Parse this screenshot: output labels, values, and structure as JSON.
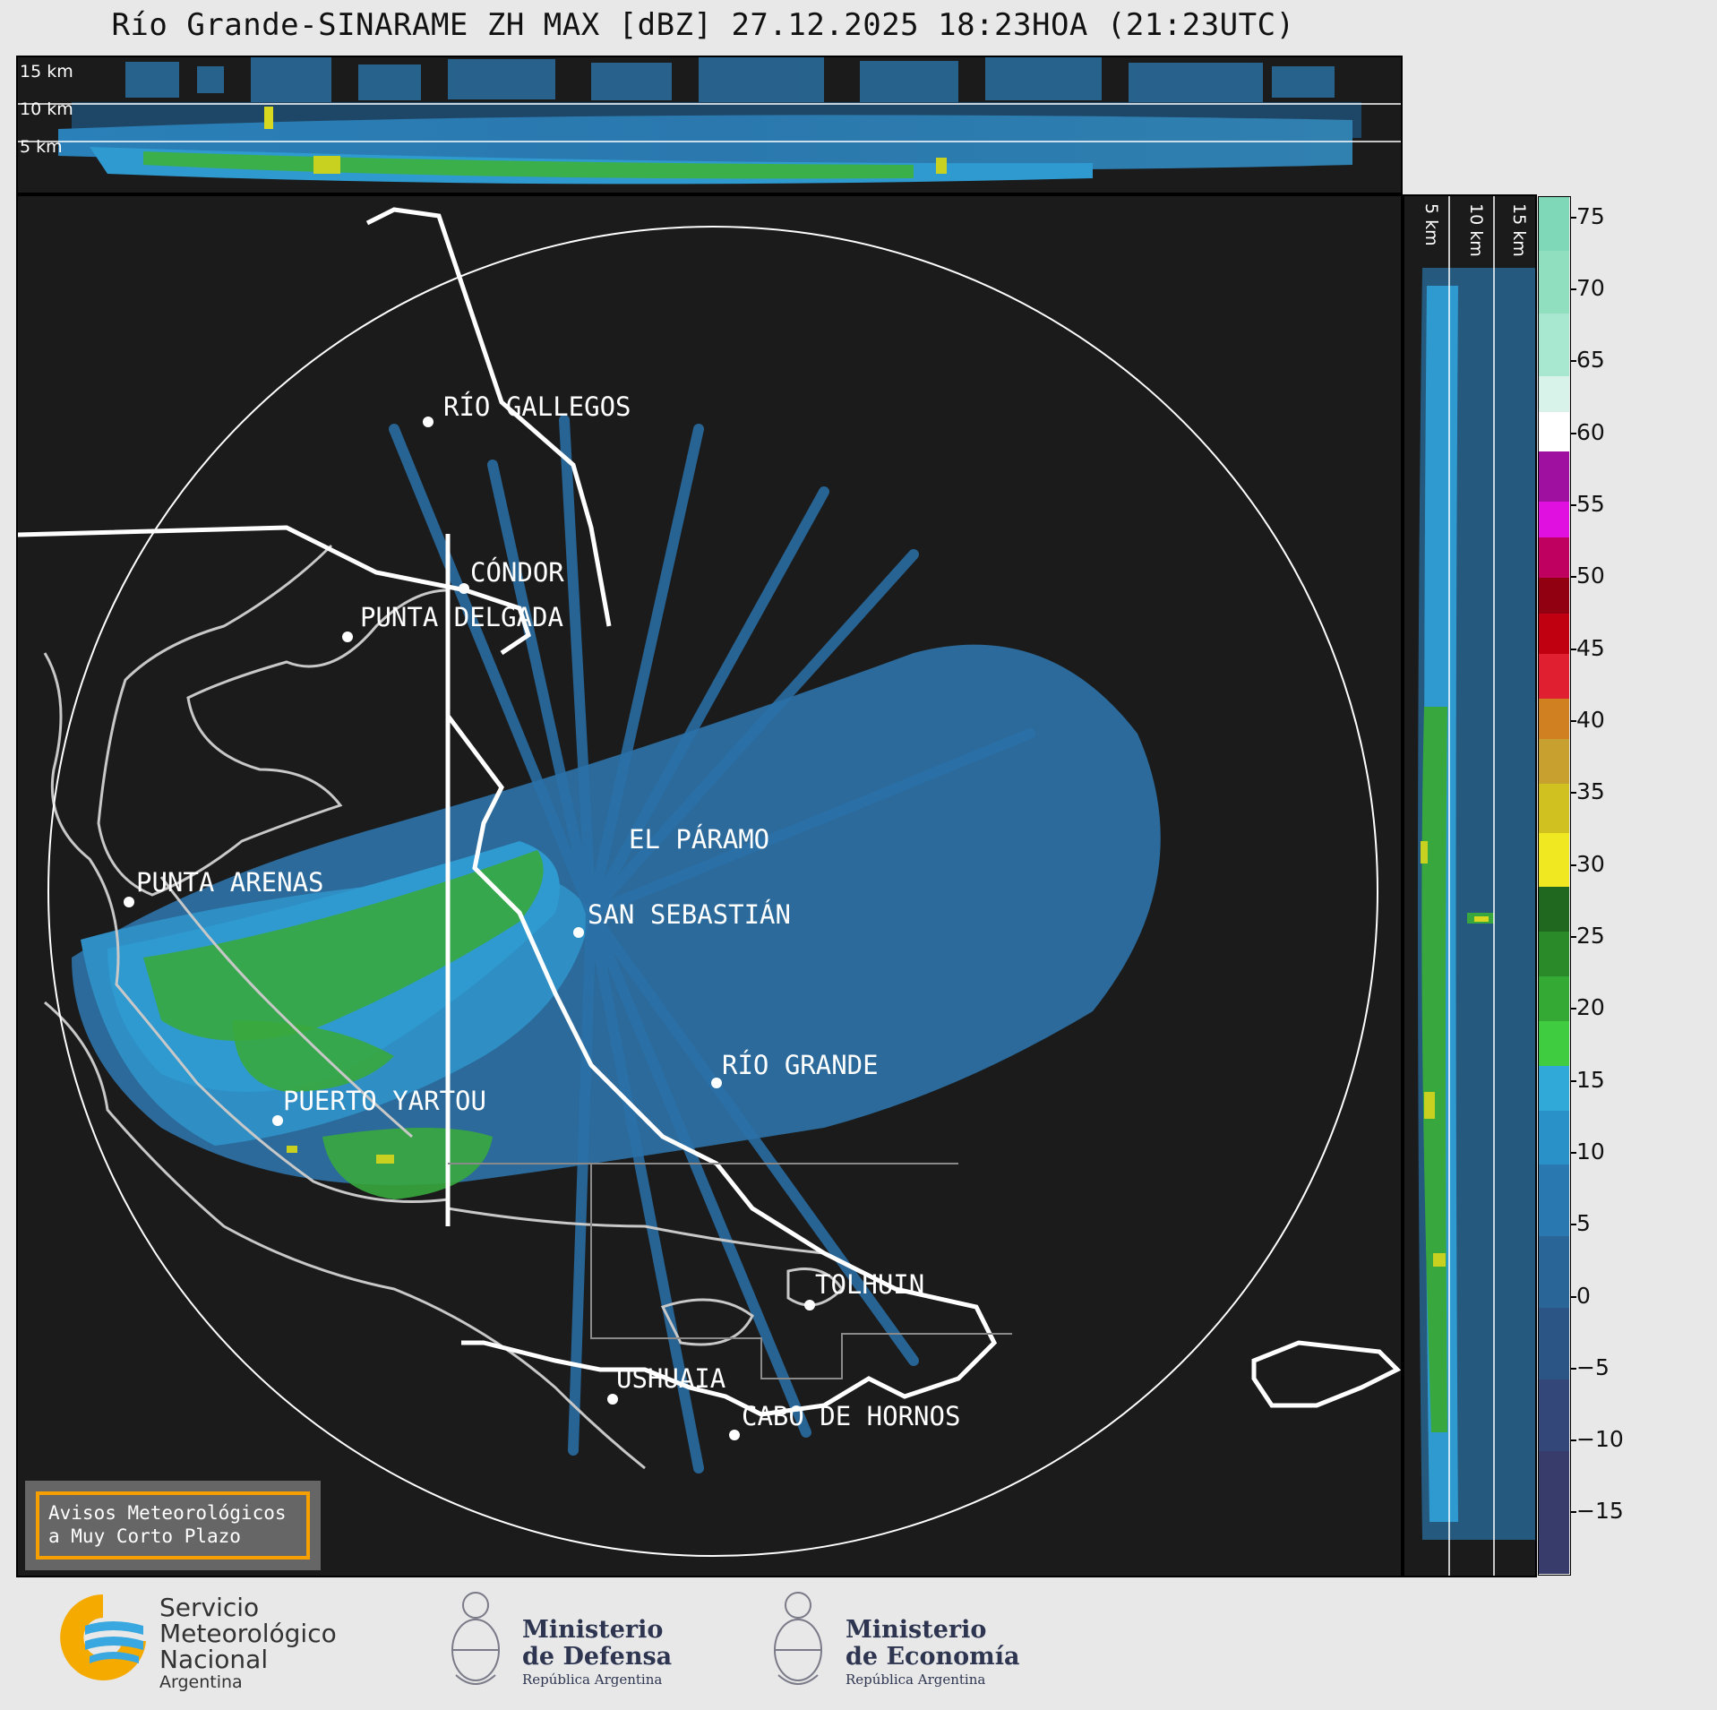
{
  "title": "Río Grande-SINARAME ZH MAX [dBZ] 27.12.2025 18:23HOA (21:23UTC)",
  "top_section": {
    "alt_labels": [
      "15 km",
      "10 km",
      "5 km"
    ]
  },
  "side_section": {
    "alt_labels": [
      "5 km",
      "10 km",
      "15 km"
    ]
  },
  "cities": [
    {
      "name": "RÍO GALLEGOS"
    },
    {
      "name": "CÓNDOR"
    },
    {
      "name": "PUNTA DELGADA"
    },
    {
      "name": "EL PÁRAMO"
    },
    {
      "name": "PUNTA ARENAS"
    },
    {
      "name": "SAN SEBASTIÁN"
    },
    {
      "name": "RÍO GRANDE"
    },
    {
      "name": "PUERTO YARTOU"
    },
    {
      "name": "TOLHUIN"
    },
    {
      "name": "USHUAIA"
    },
    {
      "name": "CABO DE HORNOS"
    }
  ],
  "colorbar": {
    "unit": "dBZ",
    "range": [
      -20,
      77
    ],
    "ticks": [
      "75",
      "70",
      "65",
      "60",
      "55",
      "50",
      "45",
      "40",
      "35",
      "30",
      "25",
      "20",
      "15",
      "10",
      "5",
      "0",
      "−5",
      "−10",
      "−15"
    ],
    "colors": {
      "below_0": "#3a4a7a",
      "0_to_18": "#2a7ab0",
      "18_to_30": "#2c9a2c",
      "30_to_42": "#d0b020",
      "42_to_50": "#c00010",
      "50_to_58": "#c000c0",
      "58_to_62": "#ffffff",
      "62_plus": "#90e0c0"
    }
  },
  "notice": {
    "line1": "Avisos Meteorológicos",
    "line2": "a Muy Corto Plazo",
    "border_color": "#f5a000"
  },
  "footer": {
    "smn": {
      "line1": "Servicio",
      "line2": "Meteorológico",
      "line3": "Nacional",
      "line4": "Argentina"
    },
    "defensa": {
      "line1": "Ministerio",
      "line2": "de Defensa",
      "line3": "República Argentina"
    },
    "economia": {
      "line1": "Ministerio",
      "line2": "de Economía",
      "line3": "República Argentina"
    }
  }
}
